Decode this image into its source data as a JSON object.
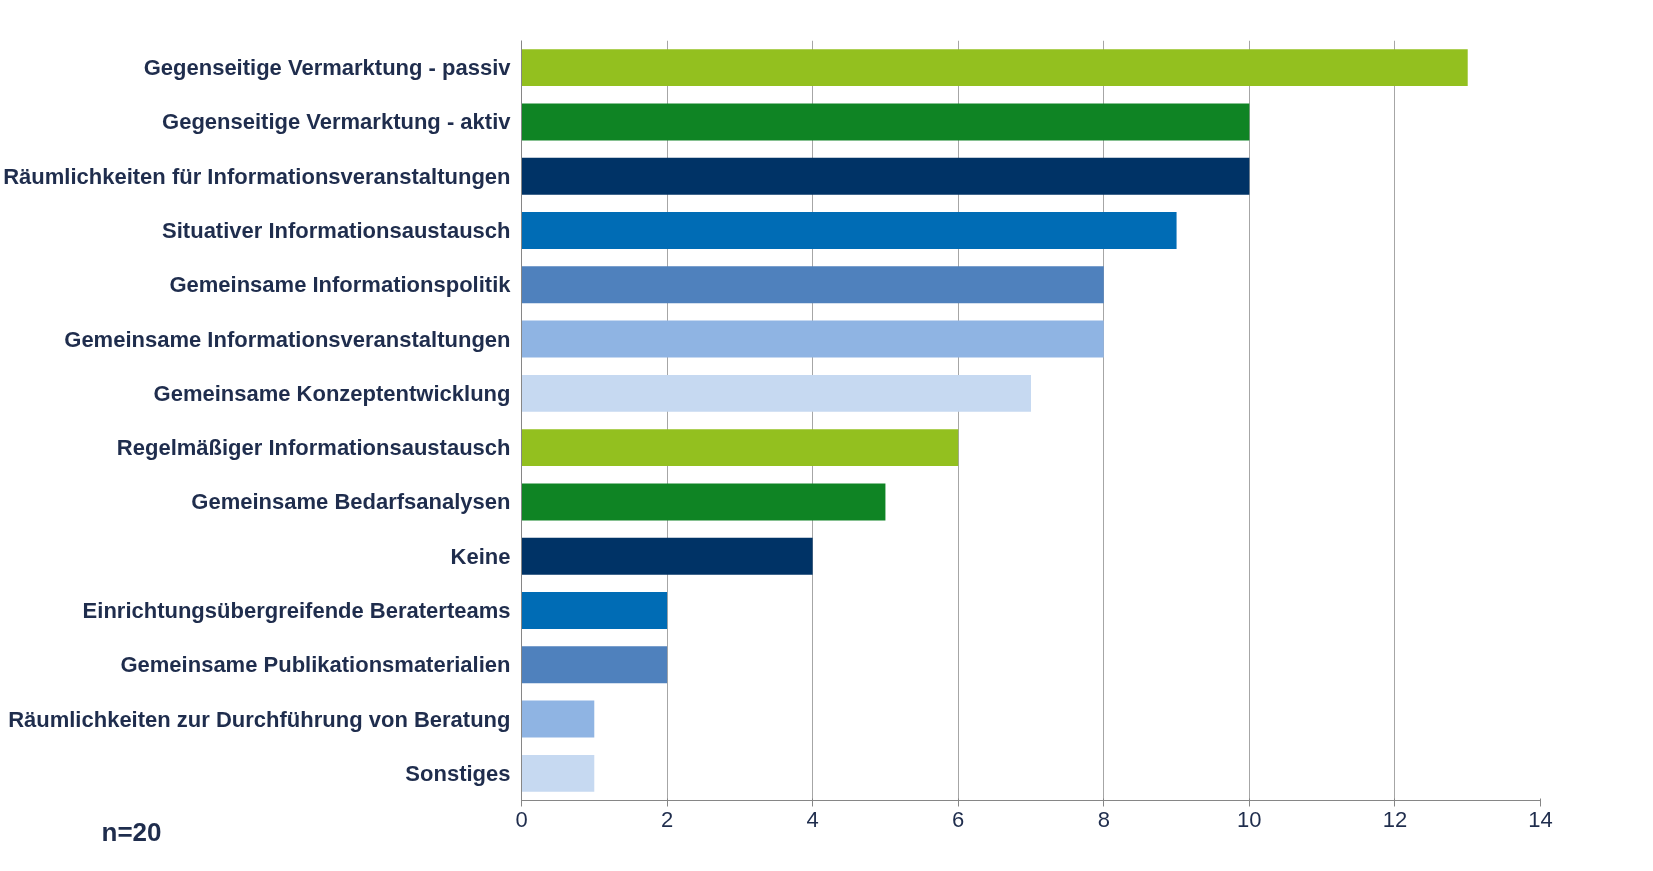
{
  "chart_data": {
    "type": "bar",
    "orientation": "horizontal",
    "categories": [
      "Gegenseitige Vermarktung - passiv",
      "Gegenseitige Vermarktung - aktiv",
      "Räumlichkeiten für Informationsveranstaltungen",
      "Situativer Informationsaustausch",
      "Gemeinsame Informationspolitik",
      "Gemeinsame Informationsveranstaltungen",
      "Gemeinsame Konzeptentwicklung",
      "Regelmäßiger Informationsaustausch",
      "Gemeinsame Bedarfsanalysen",
      "Keine",
      "Einrichtungsübergreifende Beraterteams",
      "Gemeinsame Publikationsmaterialien",
      "Räumlichkeiten zur Durchführung von Beratung",
      "Sonstiges"
    ],
    "values": [
      13,
      10,
      10,
      9,
      8,
      8,
      7,
      6,
      5,
      4,
      2,
      2,
      1,
      1
    ],
    "colors": [
      "#93c01f",
      "#0f8424",
      "#003366",
      "#006cb5",
      "#4f81bd",
      "#8fb4e3",
      "#c6d9f1",
      "#93c01f",
      "#0f8424",
      "#003366",
      "#006cb5",
      "#4f81bd",
      "#8fb4e3",
      "#c6d9f1"
    ],
    "xlim": [
      0,
      14
    ],
    "xticks": [
      0,
      2,
      4,
      6,
      8,
      10,
      12,
      14
    ],
    "grid": "x",
    "annotations": [
      "n=20"
    ]
  }
}
